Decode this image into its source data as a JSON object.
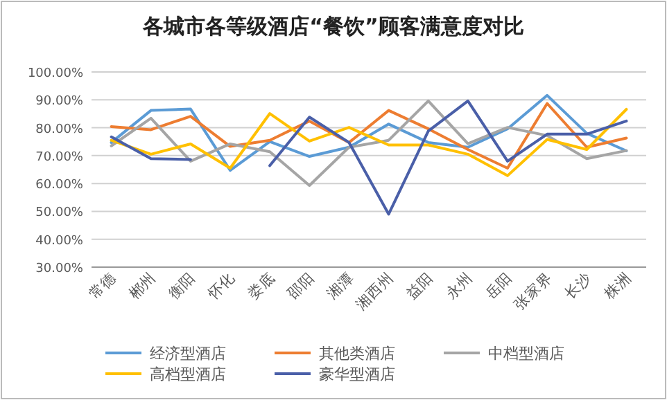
{
  "chart_data": {
    "type": "line",
    "title": "各城市各等级酒店“餐饮”顾客满意度对比",
    "categories": [
      "常德",
      "郴州",
      "衡阳",
      "怀化",
      "娄底",
      "邵阳",
      "湘潭",
      "湘西州",
      "益阳",
      "永州",
      "岳阳",
      "张家界",
      "长沙",
      "株洲"
    ],
    "series": [
      {
        "name": "经济型酒店",
        "color": "#5b9bd5",
        "values": [
          74.7,
          86.2,
          86.7,
          64.7,
          75.0,
          69.7,
          73.0,
          81.3,
          74.7,
          73.0,
          79.6,
          91.6,
          78.0,
          71.7
        ]
      },
      {
        "name": "其他类酒店",
        "color": "#ed7d31",
        "values": [
          80.4,
          79.3,
          84.1,
          73.3,
          75.5,
          82.4,
          74.7,
          86.2,
          79.6,
          72.2,
          65.5,
          88.7,
          73.0,
          76.3
        ]
      },
      {
        "name": "中档型酒店",
        "color": "#a5a5a5",
        "values": [
          73.5,
          83.4,
          68.0,
          74.2,
          71.4,
          59.3,
          73.0,
          75.5,
          89.6,
          74.3,
          80.1,
          77.2,
          68.9,
          71.8
        ]
      },
      {
        "name": "高档型酒店",
        "color": "#ffc000",
        "values": [
          75.5,
          70.5,
          74.2,
          65.5,
          85.1,
          75.2,
          80.1,
          73.8,
          73.8,
          70.5,
          62.8,
          75.8,
          72.2,
          86.6
        ]
      },
      {
        "name": "豪华型酒店",
        "color": "#4a5fa8",
        "values": [
          76.7,
          68.9,
          68.6,
          null,
          66.4,
          83.8,
          74.7,
          49.0,
          78.8,
          89.6,
          68.0,
          77.7,
          77.7,
          82.4
        ]
      }
    ],
    "ylim": [
      30,
      100
    ],
    "yticks": [
      {
        "value": 30,
        "label": "30.00%"
      },
      {
        "value": 40,
        "label": "40.00%"
      },
      {
        "value": 50,
        "label": "50.00%"
      },
      {
        "value": 60,
        "label": "60.00%"
      },
      {
        "value": 70,
        "label": "70.00%"
      },
      {
        "value": 80,
        "label": "80.00%"
      },
      {
        "value": 90,
        "label": "90.00%"
      },
      {
        "value": 100,
        "label": "100.00%"
      }
    ],
    "grid": "y",
    "legend": "bottom"
  }
}
